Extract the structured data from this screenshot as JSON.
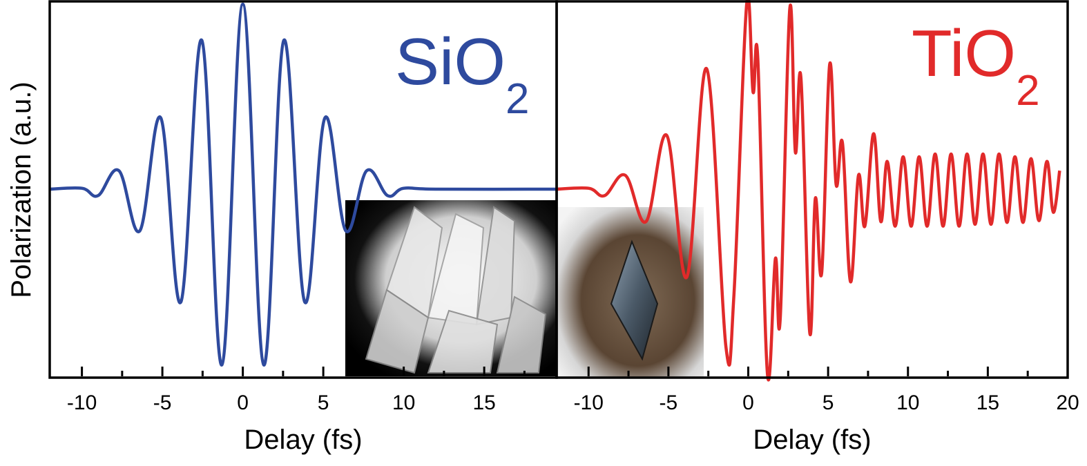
{
  "figure": {
    "ylabel": "Polarization (a.u.)"
  },
  "chart_data": [
    {
      "type": "line",
      "panel": "left",
      "label_main": "SiO",
      "label_sub": "2",
      "color": "#2e4a9e",
      "xlabel": "Delay (fs)",
      "ylabel": "Polarization (a.u.)",
      "xlim": [
        -12,
        19.5
      ],
      "ylim": [
        -1.0,
        1.0
      ],
      "xticks": [
        -10,
        -5,
        0,
        5,
        10,
        15
      ],
      "xtick_labels": [
        "-10",
        "-5",
        "0",
        "5",
        "10",
        "15"
      ],
      "grid": false,
      "inset_image": "quartz crystal cluster photo",
      "series": [
        {
          "x": [
            -12,
            -10,
            -9,
            -7.7,
            -6.4,
            -5.1,
            -3.85,
            -2.55,
            -1.3,
            0,
            1.3,
            2.55,
            3.85,
            5.1,
            6.4,
            7.7,
            9,
            10,
            12,
            19.5
          ],
          "y": [
            0,
            0.01,
            -0.07,
            0.2,
            -0.45,
            0.77,
            -1.22,
            1.61,
            -1.9,
            2.0,
            -1.9,
            1.61,
            -1.22,
            0.77,
            -0.45,
            0.2,
            -0.07,
            0.01,
            0,
            0
          ]
        }
      ]
    },
    {
      "type": "line",
      "panel": "right",
      "label_main": "TiO",
      "label_sub": "2",
      "color": "#e12a2a",
      "xlabel": "Delay (fs)",
      "xlim": [
        -12,
        20
      ],
      "ylim": [
        -1.0,
        1.0
      ],
      "xticks": [
        -10,
        -5,
        0,
        5,
        10,
        15,
        20
      ],
      "xtick_labels": [
        "-10",
        "-5",
        "0",
        "5",
        "10",
        "15",
        "20"
      ],
      "grid": false,
      "inset_image": "rutile crystal on rock photo",
      "series": [
        {
          "x": [
            -12,
            -10,
            -9,
            -7.7,
            -6.4,
            -5.1,
            -3.85,
            -2.6,
            -1.4,
            -0.9,
            -0.1,
            0.3,
            0.6,
            1.2,
            1.7,
            2.0,
            2.6,
            2.95,
            3.3,
            3.85,
            4.2,
            4.6,
            5.1,
            5.5,
            5.9,
            6.4,
            6.9,
            7.3,
            7.85,
            8.3,
            8.7,
            9.2,
            9.7,
            10.2,
            10.7,
            11.2,
            11.7,
            12.2,
            12.7,
            13.2,
            13.7,
            14.2,
            14.7,
            15.2,
            15.7,
            16.2,
            16.7,
            17.2,
            17.7,
            18.2,
            18.7,
            19.1,
            19.5
          ],
          "y": [
            0,
            0.01,
            -0.07,
            0.15,
            -0.35,
            0.58,
            -0.95,
            1.3,
            -1.7,
            -1.15,
            2.0,
            1.05,
            1.4,
            -2.0,
            -0.75,
            -1.4,
            1.95,
            0.4,
            1.2,
            -1.55,
            -0.1,
            -0.9,
            1.35,
            0.05,
            0.5,
            -1.0,
            0.15,
            -0.4,
            0.6,
            -0.35,
            0.3,
            -0.4,
            0.35,
            -0.4,
            0.35,
            -0.4,
            0.38,
            -0.4,
            0.38,
            -0.4,
            0.38,
            -0.38,
            0.38,
            -0.38,
            0.38,
            -0.36,
            0.35,
            -0.36,
            0.33,
            -0.34,
            0.3,
            -0.25,
            0.2
          ]
        }
      ]
    }
  ]
}
